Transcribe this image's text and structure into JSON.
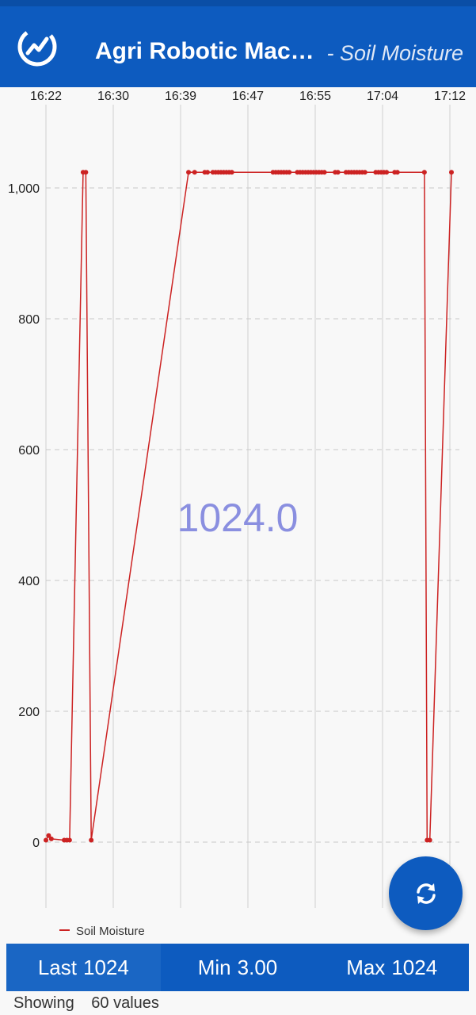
{
  "header": {
    "title": "Agri Robotic Mac…",
    "subtitle": "- Soil Moisture",
    "logo_icon": "trend-chart-logo-icon",
    "color": "#0d5bbf"
  },
  "chart_data": {
    "type": "line",
    "x_tick_labels": [
      "16:22",
      "16:30",
      "16:39",
      "16:47",
      "16:55",
      "17:04",
      "17:12"
    ],
    "y_tick_labels": [
      "1,000",
      "800",
      "600",
      "400",
      "200",
      "0"
    ],
    "y_ticks": [
      1000,
      800,
      600,
      400,
      200,
      0
    ],
    "xlim": [
      0,
      60
    ],
    "ylim": [
      -100,
      1120
    ],
    "grid": "vertical solid, horizontal dashed",
    "current_value": "1024.0",
    "legend_position": "bottom-left",
    "series": [
      {
        "name": "Soil Moisture",
        "color": "#cc2222",
        "x": [
          0,
          0.4,
          0.8,
          2.7,
          3.1,
          3.5,
          5.5,
          5.9,
          6.7,
          21.1,
          22.0,
          23.5,
          23.9,
          24.7,
          25.1,
          25.5,
          25.9,
          26.3,
          26.7,
          27.1,
          27.5,
          33.6,
          34.0,
          34.4,
          34.8,
          35.2,
          35.6,
          36.0,
          37.2,
          37.6,
          38.0,
          38.4,
          38.8,
          39.2,
          39.6,
          40.0,
          40.4,
          40.8,
          41.2,
          42.8,
          43.2,
          44.4,
          44.8,
          45.2,
          45.6,
          46.0,
          46.4,
          46.8,
          47.2,
          48.8,
          49.2,
          49.6,
          50.0,
          50.4,
          51.6,
          52.0,
          56.0,
          56.4,
          56.8,
          60.0
        ],
        "y": [
          3,
          10,
          5,
          3,
          3,
          3,
          1024,
          1024,
          3,
          1024,
          1024,
          1024,
          1024,
          1024,
          1024,
          1024,
          1024,
          1024,
          1024,
          1024,
          1024,
          1024,
          1024,
          1024,
          1024,
          1024,
          1024,
          1024,
          1024,
          1024,
          1024,
          1024,
          1024,
          1024,
          1024,
          1024,
          1024,
          1024,
          1024,
          1024,
          1024,
          1024,
          1024,
          1024,
          1024,
          1024,
          1024,
          1024,
          1024,
          1024,
          1024,
          1024,
          1024,
          1024,
          1024,
          1024,
          1024,
          3,
          3,
          1024
        ]
      }
    ]
  },
  "fab": {
    "icon": "refresh-icon"
  },
  "stats": {
    "last_label": "Last",
    "last_value": "1024",
    "min_label": "Min",
    "min_value": "3.00",
    "max_label": "Max",
    "max_value": "1024"
  },
  "footer": {
    "showing_label": "Showing",
    "count_text": "60 values"
  }
}
